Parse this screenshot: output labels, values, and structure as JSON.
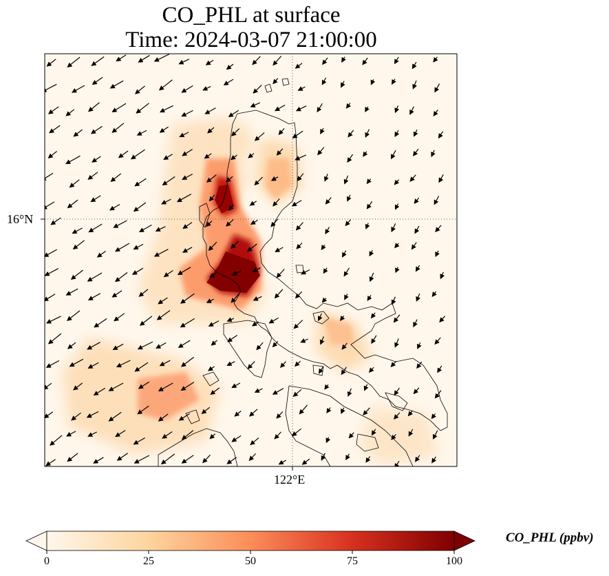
{
  "title": {
    "line1": "CO_PHL at surface",
    "line2": "Time: 2024-03-07 21:00:00"
  },
  "axes": {
    "lat_tick_label": "16°N",
    "lon_tick_label": "122°E",
    "gridlines": "dotted"
  },
  "colorbar": {
    "label": "CO_PHL (ppbv)",
    "ticks": [
      "0",
      "25",
      "50",
      "75",
      "100"
    ],
    "range": [
      0,
      100
    ],
    "colormap": "OrRd",
    "extend": "both",
    "colors": [
      "#fff7ec",
      "#fdd49e",
      "#fc8d59",
      "#d7301f",
      "#7f0000"
    ]
  },
  "map_layers": [
    "CO concentration field",
    "coastlines",
    "wind vectors"
  ]
}
